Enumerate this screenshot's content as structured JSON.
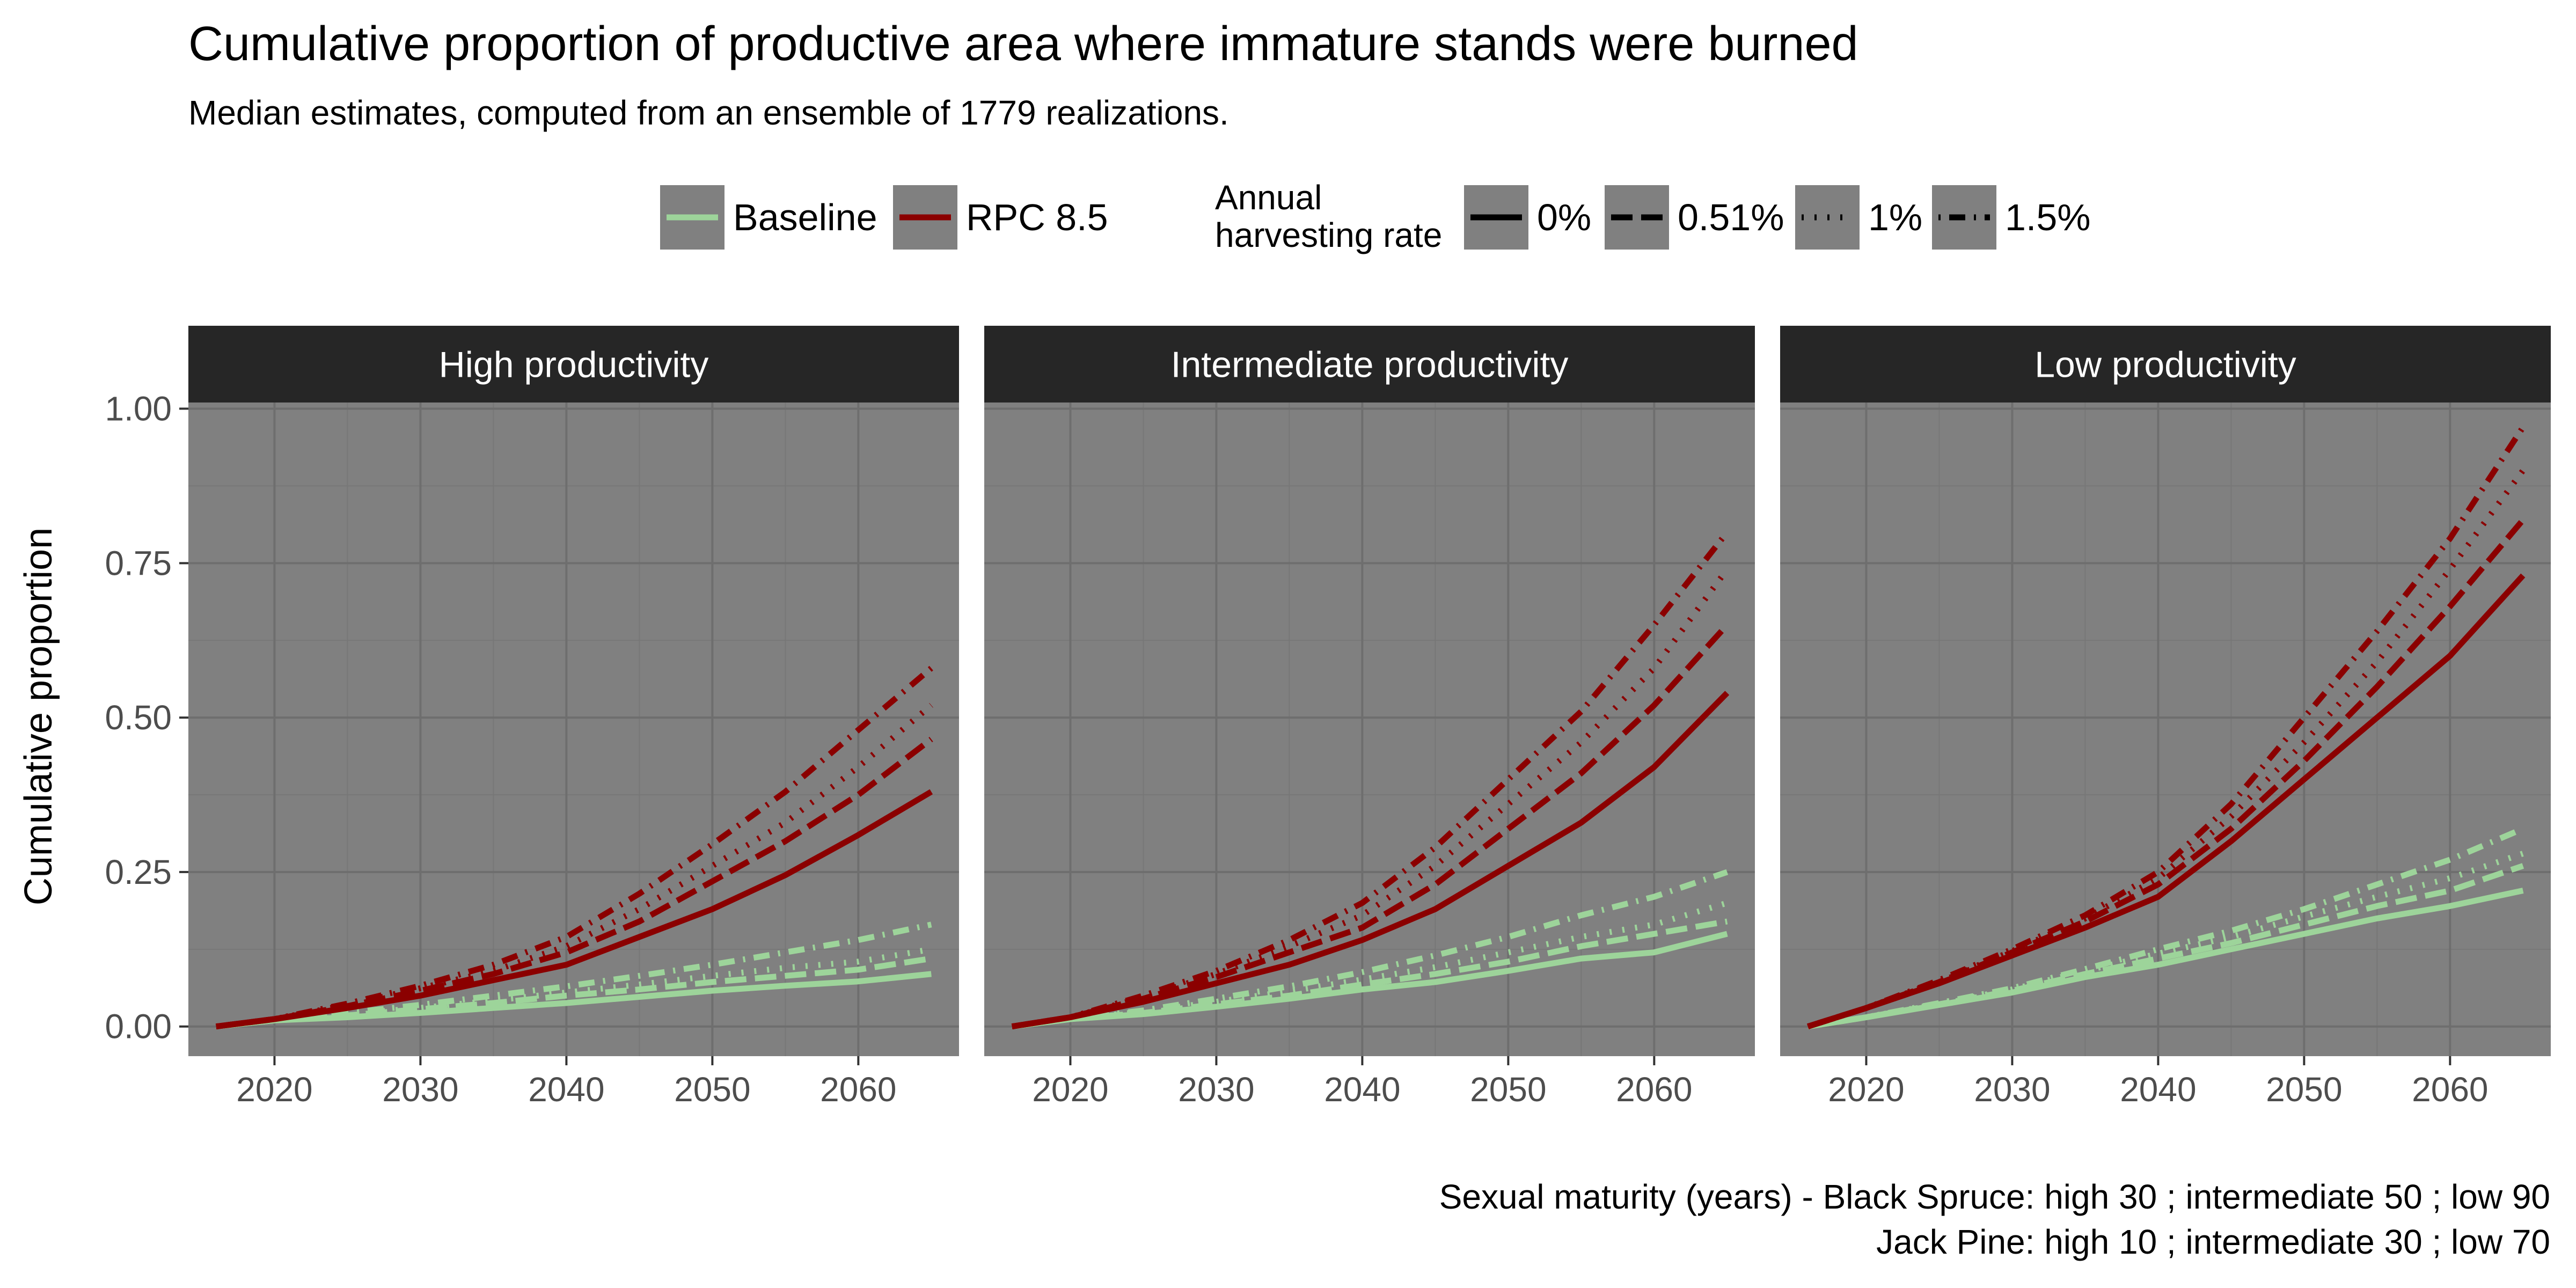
{
  "title": "Cumulative proportion of productive area where immature stands were burned",
  "subtitle": "Median estimates, computed from an ensemble of 1779 realizations.",
  "caption": {
    "line1": "Sexual maturity (years) - Black Spruce: high 30 ; intermediate 50 ; low 90",
    "line2": "Jack Pine: high 10 ; intermediate 30 ; low 70"
  },
  "legend": {
    "scenario": [
      {
        "label": "Baseline",
        "color": "#9dd49a"
      },
      {
        "label": "RPC 8.5",
        "color": "#8b0000"
      }
    ],
    "harvest_title_line1": "Annual",
    "harvest_title_line2": "harvesting rate",
    "harvest": [
      {
        "label": "0%",
        "dash": "solid"
      },
      {
        "label": "0.51%",
        "dash": "longdash"
      },
      {
        "label": "1%",
        "dash": "dotted"
      },
      {
        "label": "1.5%",
        "dash": "dotdash"
      }
    ]
  },
  "colors": {
    "panel_background": "#808080",
    "strip_background": "#262626",
    "strip_text": "#ffffff",
    "major_grid": "#6e6e6e",
    "minor_grid": "#777777",
    "axis_text": "#4d4d4d",
    "baseline": "#9dd49a",
    "rcp85": "#8b0000"
  },
  "chart_data": {
    "type": "line",
    "title": "Cumulative proportion of productive area where immature stands were burned",
    "xlabel": "",
    "ylabel": "Cumulative proportion",
    "xlim": [
      2014.1,
      2066.9
    ],
    "ylim": [
      -0.048,
      1.01
    ],
    "x_ticks": [
      2020,
      2030,
      2040,
      2050,
      2060
    ],
    "y_ticks": [
      0,
      0.25,
      0.5,
      0.75,
      1.0
    ],
    "y_tick_labels": [
      "0.00",
      "0.25",
      "0.50",
      "0.75",
      "1.00"
    ],
    "x": [
      2016,
      2020,
      2025,
      2030,
      2035,
      2040,
      2045,
      2050,
      2055,
      2060,
      2065
    ],
    "panels": [
      {
        "label": "High productivity",
        "series": [
          {
            "scenario": "Baseline",
            "harvest": "0%",
            "values": [
              0,
              0.01,
              0.015,
              0.022,
              0.03,
              0.038,
              0.048,
              0.058,
              0.066,
              0.073,
              0.085
            ]
          },
          {
            "scenario": "Baseline",
            "harvest": "0.51%",
            "values": [
              0,
              0.01,
              0.018,
              0.028,
              0.038,
              0.05,
              0.06,
              0.072,
              0.082,
              0.092,
              0.11
            ]
          },
          {
            "scenario": "Baseline",
            "harvest": "1%",
            "values": [
              0,
              0.01,
              0.02,
              0.03,
              0.042,
              0.055,
              0.068,
              0.082,
              0.095,
              0.105,
              0.125
            ]
          },
          {
            "scenario": "Baseline",
            "harvest": "1.5%",
            "values": [
              0,
              0.01,
              0.022,
              0.035,
              0.05,
              0.065,
              0.082,
              0.1,
              0.12,
              0.14,
              0.165
            ]
          },
          {
            "scenario": "RPC 8.5",
            "harvest": "0%",
            "values": [
              0,
              0.012,
              0.03,
              0.05,
              0.075,
              0.1,
              0.145,
              0.19,
              0.245,
              0.31,
              0.38
            ]
          },
          {
            "scenario": "RPC 8.5",
            "harvest": "0.51%",
            "values": [
              0,
              0.012,
              0.033,
              0.058,
              0.085,
              0.12,
              0.17,
              0.235,
              0.3,
              0.375,
              0.465
            ]
          },
          {
            "scenario": "RPC 8.5",
            "harvest": "1%",
            "values": [
              0,
              0.012,
              0.035,
              0.062,
              0.09,
              0.13,
              0.19,
              0.26,
              0.33,
              0.42,
              0.52
            ]
          },
          {
            "scenario": "RPC 8.5",
            "harvest": "1.5%",
            "values": [
              0,
              0.012,
              0.037,
              0.066,
              0.1,
              0.145,
              0.215,
              0.295,
              0.38,
              0.48,
              0.58
            ]
          }
        ]
      },
      {
        "label": "Intermediate productivity",
        "series": [
          {
            "scenario": "Baseline",
            "harvest": "0%",
            "values": [
              0,
              0.012,
              0.02,
              0.032,
              0.045,
              0.06,
              0.072,
              0.09,
              0.11,
              0.12,
              0.15
            ]
          },
          {
            "scenario": "Baseline",
            "harvest": "0.51%",
            "values": [
              0,
              0.012,
              0.022,
              0.036,
              0.05,
              0.068,
              0.085,
              0.105,
              0.13,
              0.15,
              0.17
            ]
          },
          {
            "scenario": "Baseline",
            "harvest": "1%",
            "values": [
              0,
              0.012,
              0.024,
              0.04,
              0.057,
              0.076,
              0.096,
              0.12,
              0.145,
              0.165,
              0.2
            ]
          },
          {
            "scenario": "Baseline",
            "harvest": "1.5%",
            "values": [
              0,
              0.012,
              0.026,
              0.045,
              0.065,
              0.088,
              0.115,
              0.145,
              0.18,
              0.21,
              0.25
            ]
          },
          {
            "scenario": "RPC 8.5",
            "harvest": "0%",
            "values": [
              0,
              0.015,
              0.04,
              0.07,
              0.1,
              0.14,
              0.19,
              0.26,
              0.33,
              0.42,
              0.54
            ]
          },
          {
            "scenario": "RPC 8.5",
            "harvest": "0.51%",
            "values": [
              0,
              0.015,
              0.045,
              0.08,
              0.12,
              0.16,
              0.23,
              0.32,
              0.41,
              0.52,
              0.65
            ]
          },
          {
            "scenario": "RPC 8.5",
            "harvest": "1%",
            "values": [
              0,
              0.015,
              0.047,
              0.085,
              0.13,
              0.18,
              0.26,
              0.36,
              0.46,
              0.58,
              0.74
            ]
          },
          {
            "scenario": "RPC 8.5",
            "harvest": "1.5%",
            "values": [
              0,
              0.015,
              0.05,
              0.09,
              0.14,
              0.2,
              0.29,
              0.4,
              0.51,
              0.65,
              0.8
            ]
          }
        ]
      },
      {
        "label": "Low productivity",
        "series": [
          {
            "scenario": "Baseline",
            "harvest": "0%",
            "values": [
              0,
              0.015,
              0.035,
              0.055,
              0.08,
              0.1,
              0.125,
              0.15,
              0.175,
              0.195,
              0.22
            ]
          },
          {
            "scenario": "Baseline",
            "harvest": "0.51%",
            "values": [
              0,
              0.015,
              0.036,
              0.058,
              0.085,
              0.11,
              0.135,
              0.165,
              0.195,
              0.22,
              0.26
            ]
          },
          {
            "scenario": "Baseline",
            "harvest": "1%",
            "values": [
              0,
              0.015,
              0.037,
              0.06,
              0.09,
              0.118,
              0.145,
              0.178,
              0.21,
              0.24,
              0.28
            ]
          },
          {
            "scenario": "Baseline",
            "harvest": "1.5%",
            "values": [
              0,
              0.015,
              0.038,
              0.062,
              0.093,
              0.125,
              0.155,
              0.19,
              0.23,
              0.27,
              0.32
            ]
          },
          {
            "scenario": "RPC 8.5",
            "harvest": "0%",
            "values": [
              0,
              0.03,
              0.07,
              0.115,
              0.16,
              0.21,
              0.3,
              0.4,
              0.5,
              0.6,
              0.73
            ]
          },
          {
            "scenario": "RPC 8.5",
            "harvest": "0.51%",
            "values": [
              0,
              0.03,
              0.072,
              0.12,
              0.17,
              0.23,
              0.32,
              0.43,
              0.55,
              0.68,
              0.82
            ]
          },
          {
            "scenario": "RPC 8.5",
            "harvest": "1%",
            "values": [
              0,
              0.03,
              0.073,
              0.122,
              0.175,
              0.24,
              0.34,
              0.46,
              0.59,
              0.74,
              0.9
            ]
          },
          {
            "scenario": "RPC 8.5",
            "harvest": "1.5%",
            "values": [
              0,
              0.03,
              0.075,
              0.125,
              0.18,
              0.25,
              0.36,
              0.5,
              0.64,
              0.79,
              0.97
            ]
          }
        ]
      }
    ]
  }
}
